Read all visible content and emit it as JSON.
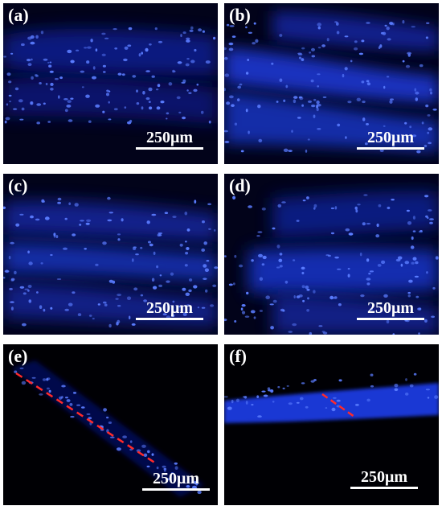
{
  "panels": [
    {
      "id": "a",
      "label": "(a)",
      "scale": "250μm"
    },
    {
      "id": "b",
      "label": "(b)",
      "scale": "250μm"
    },
    {
      "id": "c",
      "label": "(c)",
      "scale": "250μm"
    },
    {
      "id": "d",
      "label": "(d)",
      "scale": "250μm"
    },
    {
      "id": "e",
      "label": "(e)",
      "scale": "250μm"
    },
    {
      "id": "f",
      "label": "(f)",
      "scale": "250μm"
    }
  ],
  "colors": {
    "background": "#02031a",
    "fluorescence": "#1a3cff",
    "nuclei": "#5a7cff",
    "marker_line": "#ff2a2a",
    "text": "#ffffff"
  }
}
